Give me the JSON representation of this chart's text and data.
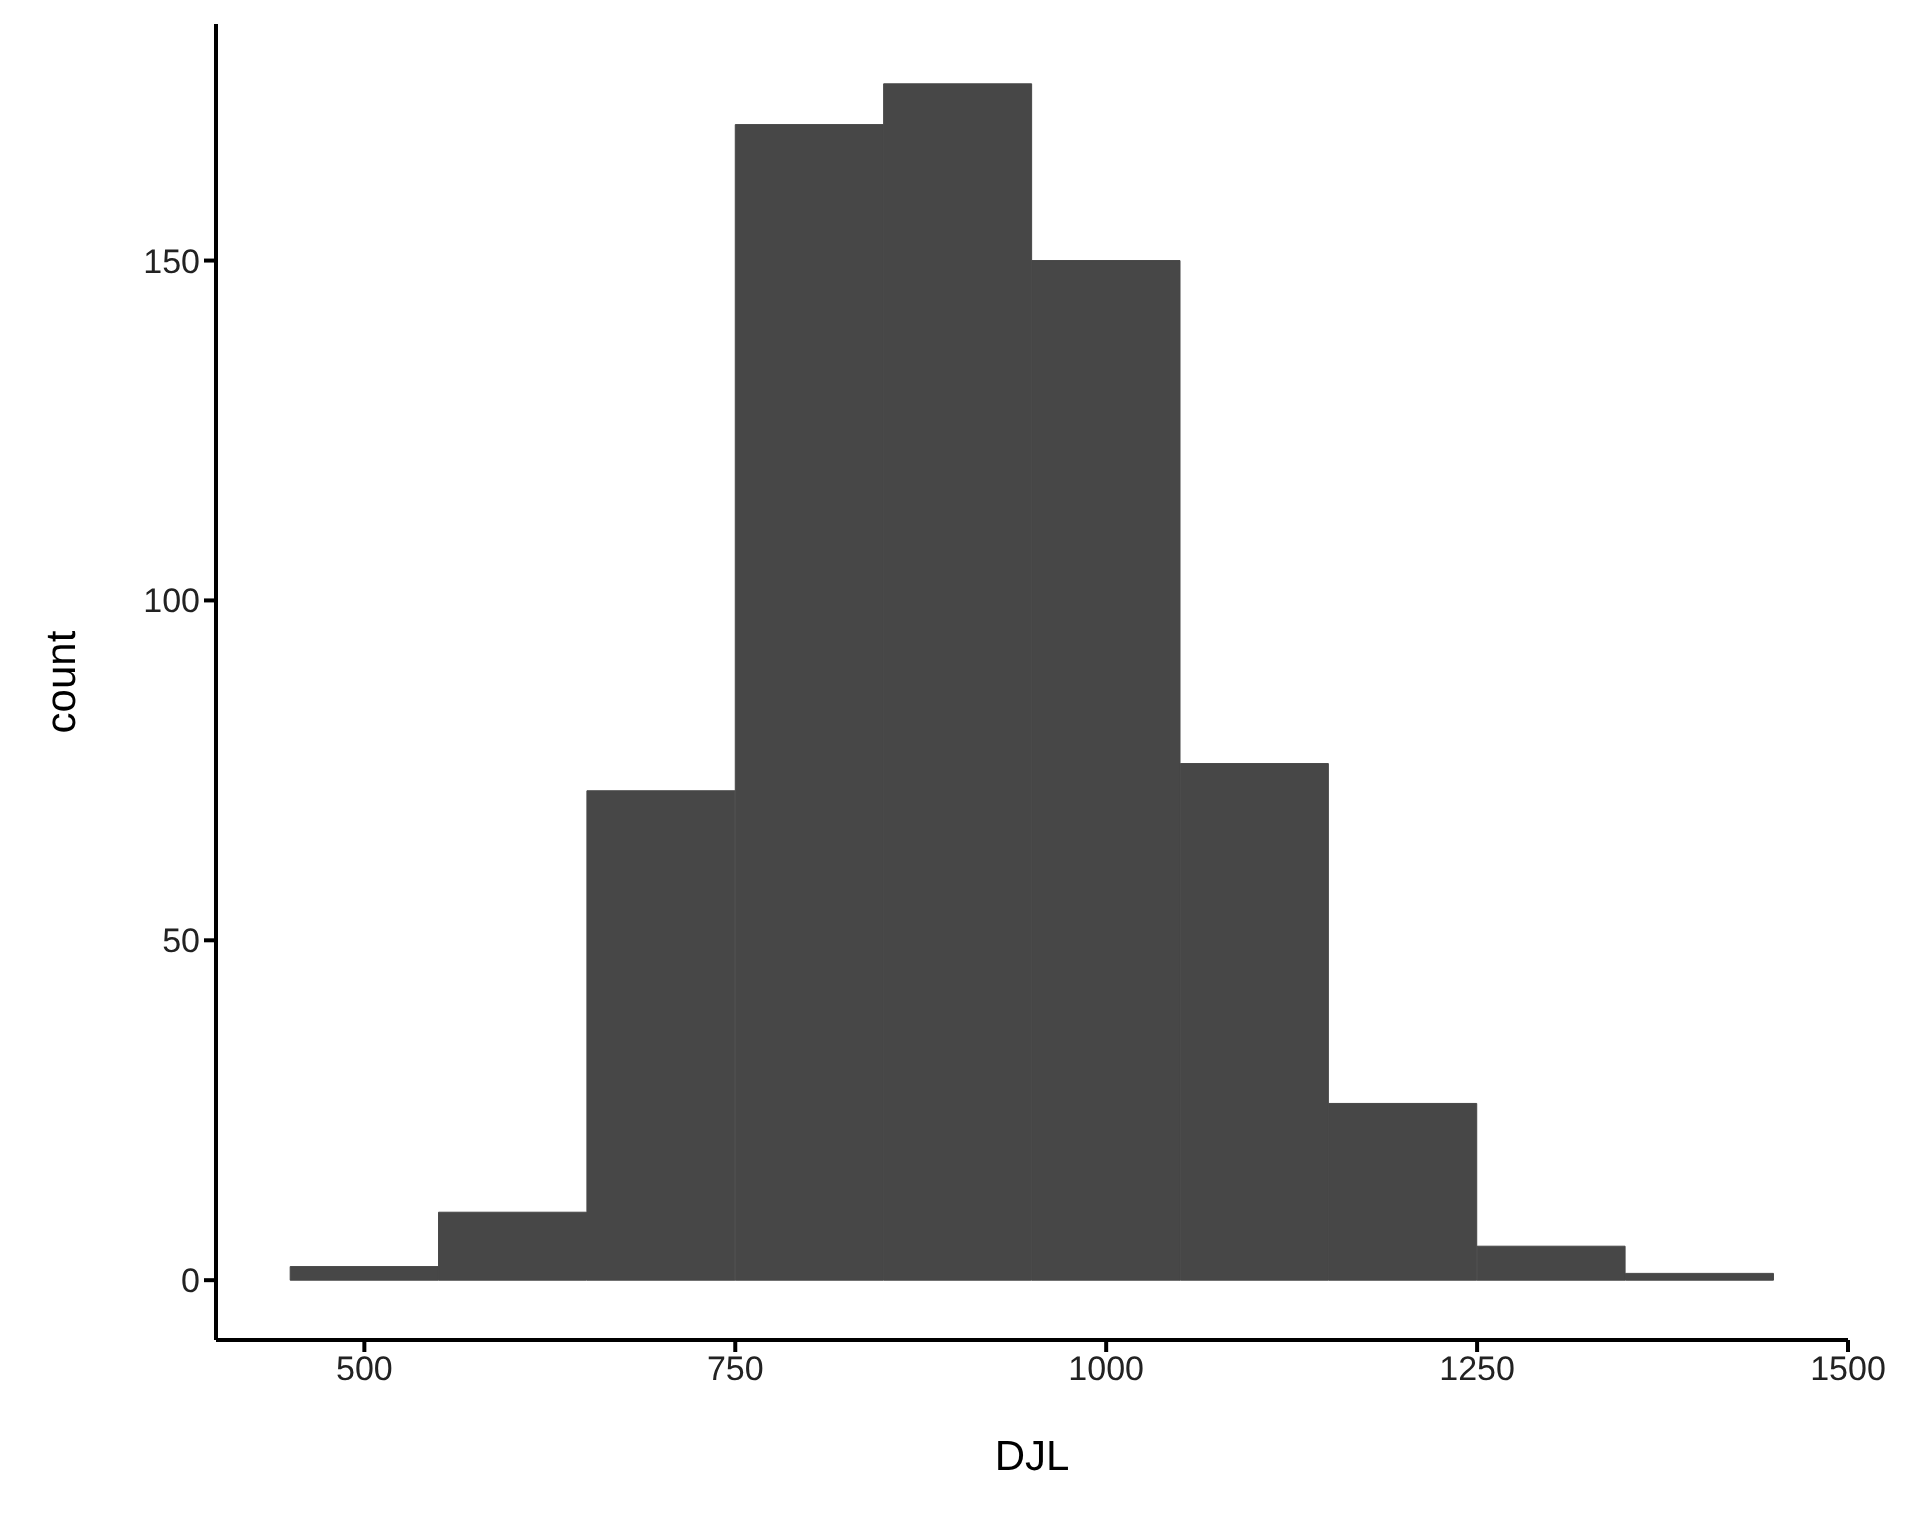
{
  "chart_data": {
    "type": "histogram",
    "xlabel": "DJL",
    "ylabel": "count",
    "bins": [
      450,
      550,
      650,
      750,
      850,
      950,
      1050,
      1150,
      1250,
      1350,
      1450
    ],
    "values": [
      2,
      10,
      72,
      170,
      176,
      150,
      76,
      26,
      5,
      1
    ],
    "color": "#474747",
    "xlim": [
      400,
      1500
    ],
    "xticks": [
      500,
      750,
      1000,
      1250,
      1500
    ],
    "ylim": [
      -8.8,
      184.8
    ],
    "yticks": [
      0,
      50,
      100,
      150
    ],
    "grid": false
  }
}
